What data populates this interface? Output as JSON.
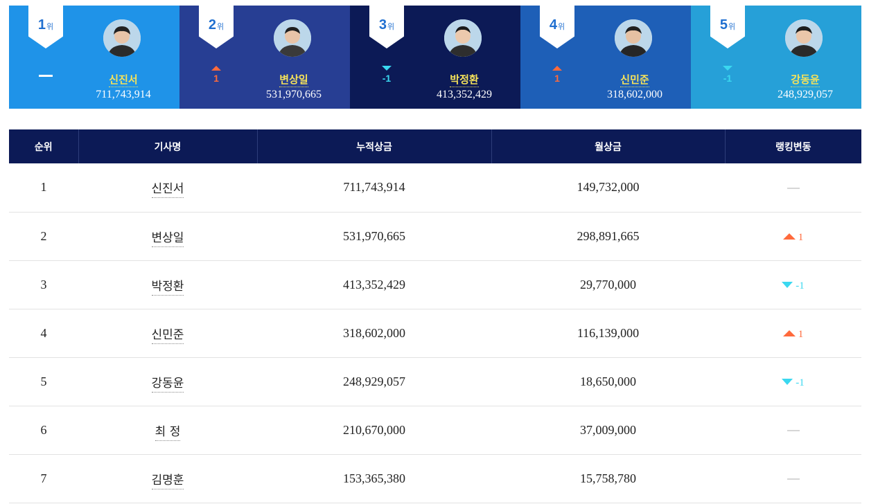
{
  "top5": [
    {
      "rank": "1",
      "rank_unit": "위",
      "name": "신진서",
      "prize": "711,743,914",
      "change_dir": "same",
      "change": ""
    },
    {
      "rank": "2",
      "rank_unit": "위",
      "name": "변상일",
      "prize": "531,970,665",
      "change_dir": "up",
      "change": "1"
    },
    {
      "rank": "3",
      "rank_unit": "위",
      "name": "박정환",
      "prize": "413,352,429",
      "change_dir": "down",
      "change": "-1"
    },
    {
      "rank": "4",
      "rank_unit": "위",
      "name": "신민준",
      "prize": "318,602,000",
      "change_dir": "up",
      "change": "1"
    },
    {
      "rank": "5",
      "rank_unit": "위",
      "name": "강동윤",
      "prize": "248,929,057",
      "change_dir": "down",
      "change": "-1"
    }
  ],
  "table": {
    "headers": [
      "순위",
      "기사명",
      "누적상금",
      "월상금",
      "랭킹변동"
    ],
    "rows": [
      {
        "rank": "1",
        "name": "신진서",
        "total": "711,743,914",
        "month": "149,732,000",
        "change_dir": "same",
        "change": ""
      },
      {
        "rank": "2",
        "name": "변상일",
        "total": "531,970,665",
        "month": "298,891,665",
        "change_dir": "up",
        "change": "1"
      },
      {
        "rank": "3",
        "name": "박정환",
        "total": "413,352,429",
        "month": "29,770,000",
        "change_dir": "down",
        "change": "-1"
      },
      {
        "rank": "4",
        "name": "신민준",
        "total": "318,602,000",
        "month": "116,139,000",
        "change_dir": "up",
        "change": "1"
      },
      {
        "rank": "5",
        "name": "강동윤",
        "total": "248,929,057",
        "month": "18,650,000",
        "change_dir": "down",
        "change": "-1"
      },
      {
        "rank": "6",
        "name": "최 정",
        "total": "210,670,000",
        "month": "37,009,000",
        "change_dir": "same",
        "change": ""
      },
      {
        "rank": "7",
        "name": "김명훈",
        "total": "153,365,380",
        "month": "15,758,780",
        "change_dir": "same",
        "change": ""
      }
    ]
  },
  "colors": {
    "header_bg": "#0c1a56",
    "card_1": "#1f93e8",
    "card_2": "#273e93",
    "card_3": "#0c1a56",
    "card_4": "#1e5fb7",
    "card_5": "#26a0d8",
    "up": "#ff6a3c",
    "down": "#3ad8f0",
    "name_highlight": "#f5e25a"
  },
  "icons": {
    "up": "triangle-up-icon",
    "down": "triangle-down-icon",
    "same": "dash-icon",
    "avatar": "player-avatar-icon"
  }
}
